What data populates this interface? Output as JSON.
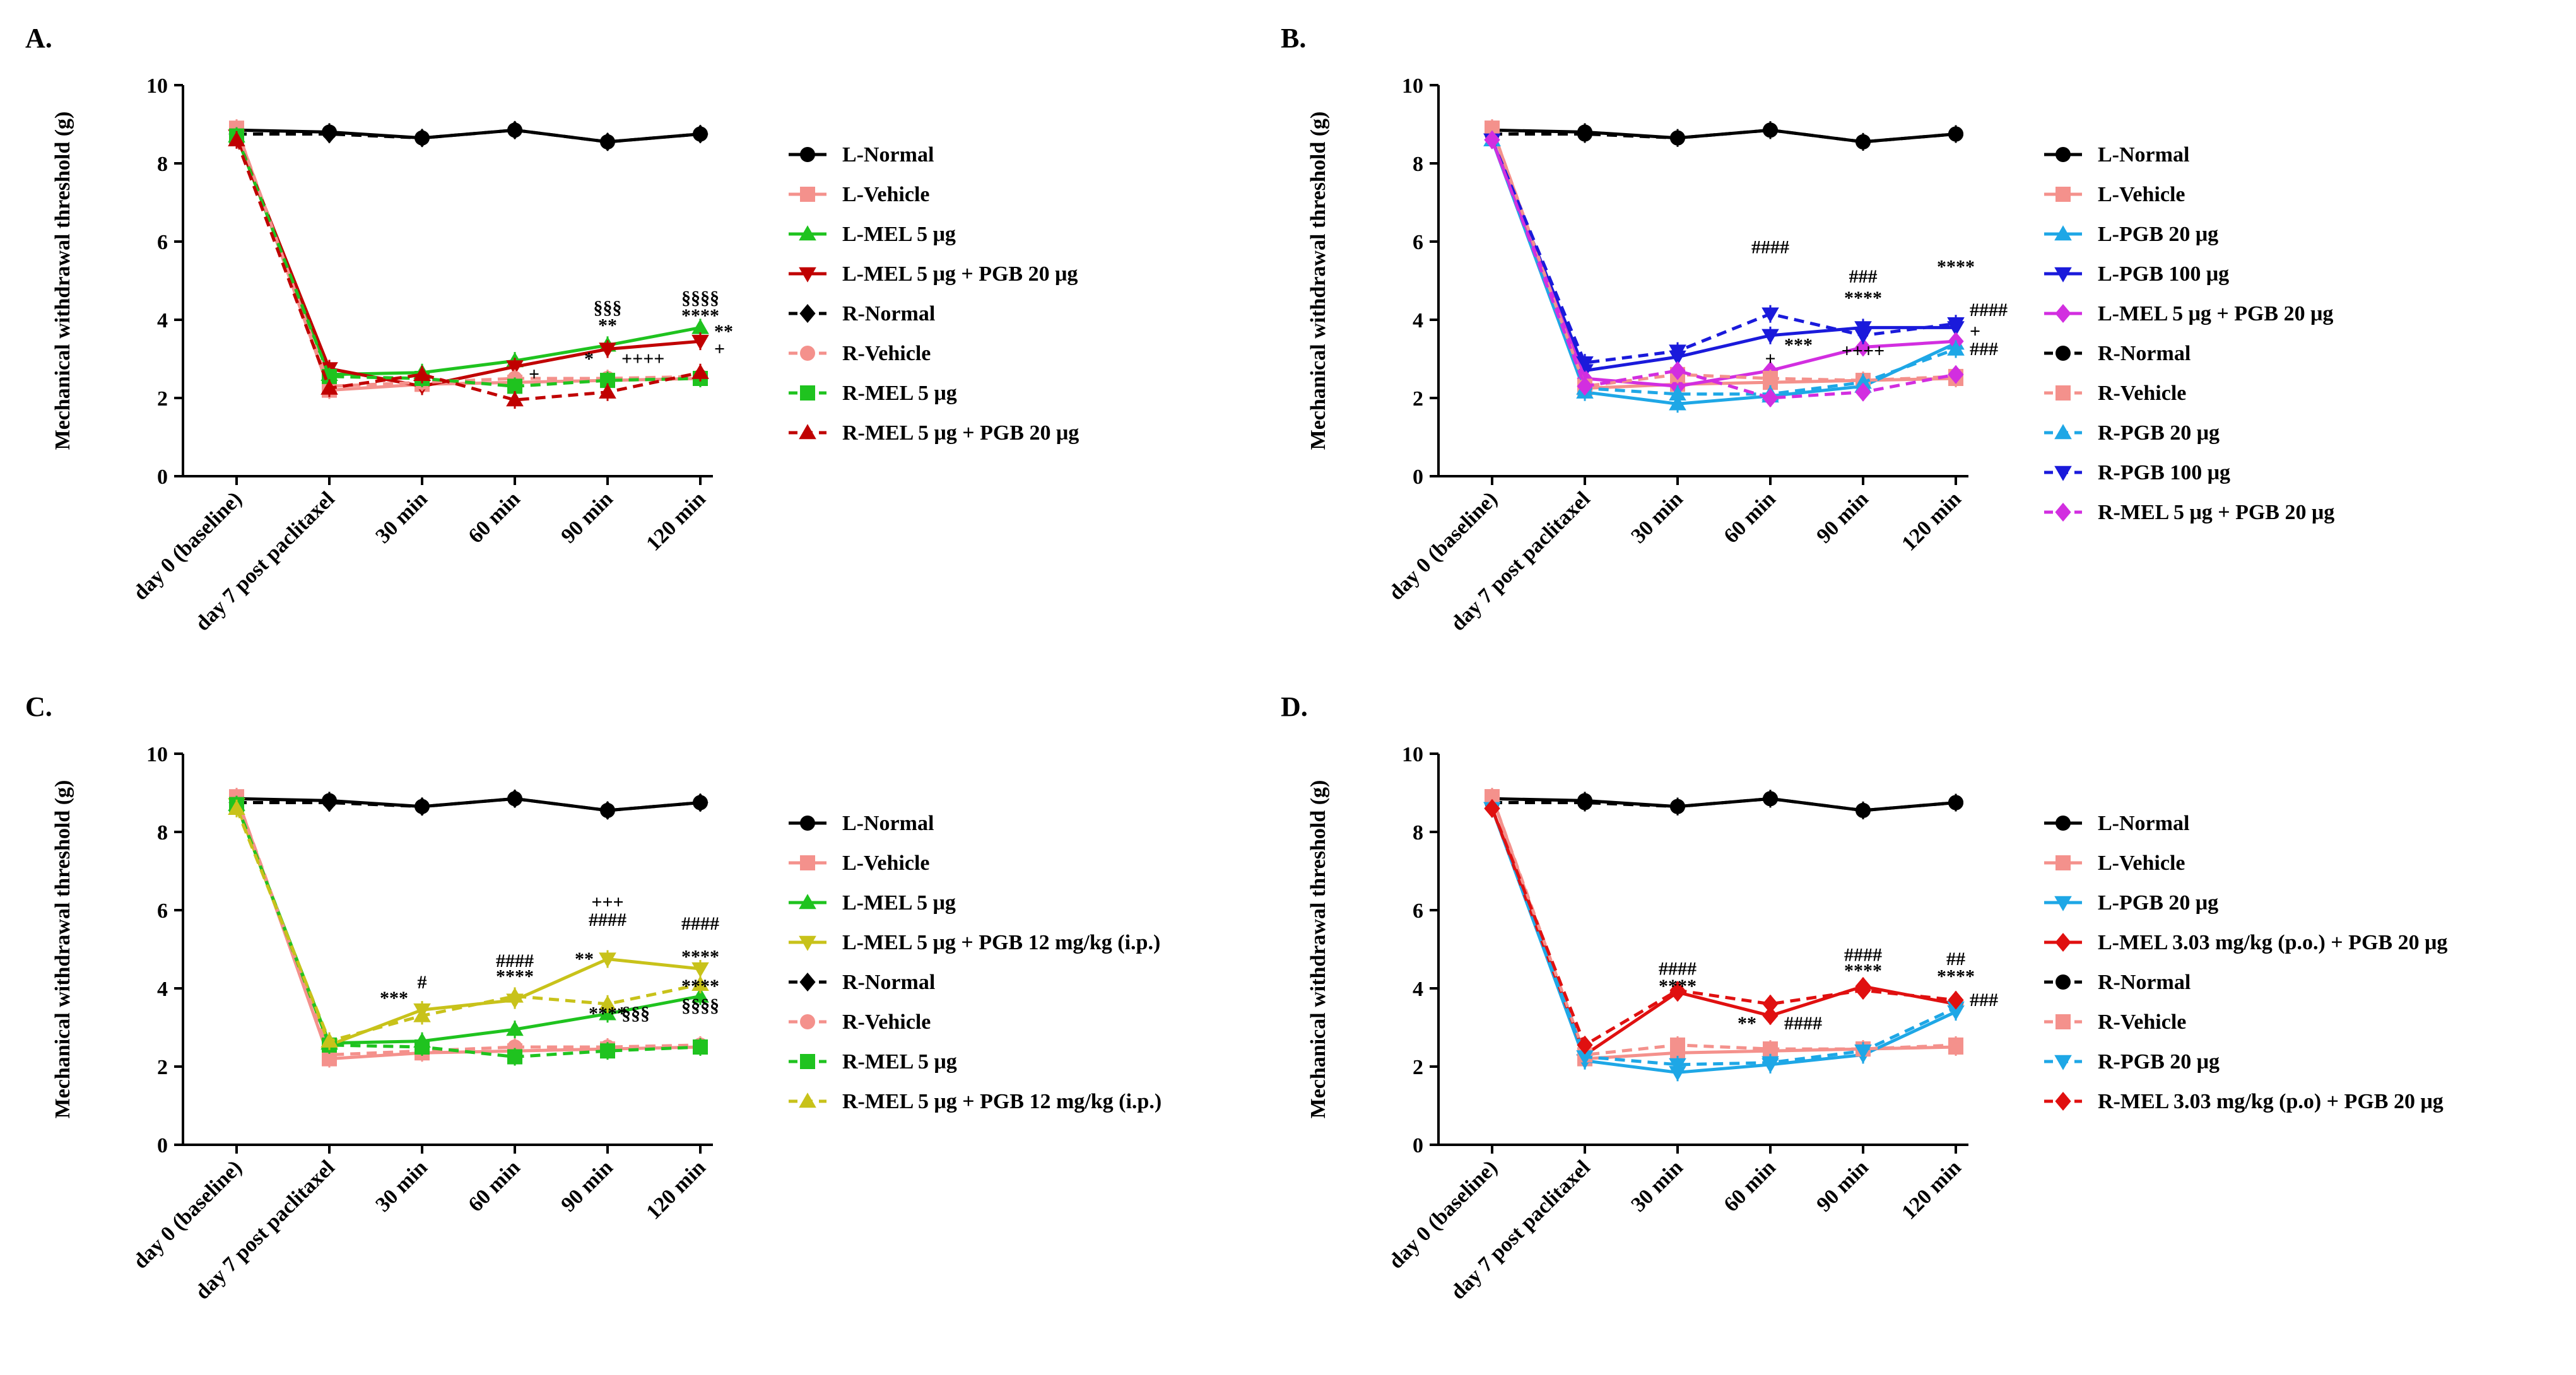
{
  "figure": {
    "ylabel": "Mechanical withdrawal threshold (g)",
    "categories": [
      "day 0 (baseline)",
      "day 7 post paclitaxel",
      "30 min",
      "60 min",
      "90 min",
      "120 min"
    ],
    "yticks": [
      "0",
      "2",
      "4",
      "6",
      "8",
      "10"
    ]
  },
  "chart_data": [
    {
      "panel": "A.",
      "type": "line",
      "title": "A.",
      "xlabel": "",
      "ylabel": "Mechanical withdrawal threshold (g)",
      "ylim": [
        0,
        10
      ],
      "categories": [
        "day 0 (baseline)",
        "day 7 post paclitaxel",
        "30 min",
        "60 min",
        "90 min",
        "120 min"
      ],
      "series": [
        {
          "name": "L-Normal",
          "color": "#000000",
          "marker": "circle",
          "dashed": false,
          "values": [
            8.85,
            8.8,
            8.65,
            8.85,
            8.55,
            8.75
          ]
        },
        {
          "name": "L-Vehicle",
          "color": "#f4918c",
          "marker": "square",
          "dashed": false,
          "values": [
            8.9,
            2.2,
            2.35,
            2.4,
            2.45,
            2.5
          ]
        },
        {
          "name": "L-MEL 5 μg",
          "color": "#1fc31f",
          "marker": "triangle-up",
          "dashed": false,
          "values": [
            8.7,
            2.6,
            2.65,
            2.95,
            3.35,
            3.8
          ]
        },
        {
          "name": "L-MEL 5 μg + PGB 20 μg",
          "color": "#c00000",
          "marker": "triangle-down",
          "dashed": false,
          "values": [
            8.7,
            2.75,
            2.3,
            2.8,
            3.25,
            3.45
          ]
        },
        {
          "name": "R-Normal",
          "color": "#000000",
          "marker": "diamond",
          "dashed": true,
          "values": [
            8.75,
            8.75,
            8.65,
            8.85,
            8.55,
            8.75
          ]
        },
        {
          "name": "R-Vehicle",
          "color": "#f4918c",
          "marker": "circle",
          "dashed": true,
          "values": [
            8.9,
            2.3,
            2.4,
            2.5,
            2.5,
            2.55
          ]
        },
        {
          "name": "R-MEL 5 μg",
          "color": "#1fc31f",
          "marker": "square",
          "dashed": true,
          "values": [
            8.7,
            2.55,
            2.5,
            2.3,
            2.45,
            2.5
          ]
        },
        {
          "name": "R-MEL 5 μg + PGB 20 μg",
          "color": "#c00000",
          "marker": "triangle-up",
          "dashed": true,
          "values": [
            8.6,
            2.25,
            2.6,
            1.95,
            2.15,
            2.65
          ]
        }
      ],
      "annotations": [
        {
          "text": "§§§",
          "x": "90 min",
          "y": 4.15
        },
        {
          "text": "**",
          "x": "90 min",
          "y": 3.7
        },
        {
          "text": "§§§§",
          "x": "120 min",
          "y": 4.4
        },
        {
          "text": "****",
          "x": "120 min",
          "y": 3.95
        },
        {
          "text": "**",
          "x": "120 min",
          "y": 3.55,
          "side": "right"
        },
        {
          "text": "+",
          "x": "120 min",
          "y": 3.1,
          "side": "right"
        },
        {
          "text": "+",
          "x": "60 min",
          "y": 2.45,
          "side": "right"
        },
        {
          "text": "*",
          "x": "90 min",
          "y": 2.85,
          "side": "left"
        },
        {
          "text": "++++",
          "x": "90 min",
          "y": 2.85,
          "side": "right"
        }
      ]
    },
    {
      "panel": "B.",
      "type": "line",
      "title": "B.",
      "xlabel": "",
      "ylabel": "Mechanical withdrawal threshold (g)",
      "ylim": [
        0,
        10
      ],
      "categories": [
        "day 0 (baseline)",
        "day 7 post paclitaxel",
        "30 min",
        "60 min",
        "90 min",
        "120 min"
      ],
      "series": [
        {
          "name": "L-Normal",
          "color": "#000000",
          "marker": "circle",
          "dashed": false,
          "values": [
            8.85,
            8.8,
            8.65,
            8.85,
            8.55,
            8.75
          ]
        },
        {
          "name": "L-Vehicle",
          "color": "#f4918c",
          "marker": "square",
          "dashed": false,
          "values": [
            8.9,
            2.25,
            2.35,
            2.4,
            2.45,
            2.5
          ]
        },
        {
          "name": "L-PGB 20 μg",
          "color": "#1ea7e6",
          "marker": "triangle-up",
          "dashed": false,
          "values": [
            8.6,
            2.15,
            1.85,
            2.05,
            2.3,
            3.4
          ]
        },
        {
          "name": "L-PGB 100 μg",
          "color": "#1a1adb",
          "marker": "triangle-down",
          "dashed": false,
          "values": [
            8.6,
            2.7,
            3.05,
            3.6,
            3.8,
            3.8
          ]
        },
        {
          "name": "L-MEL 5 μg + PGB 20 μg",
          "color": "#d22ee0",
          "marker": "diamond",
          "dashed": false,
          "values": [
            8.6,
            2.5,
            2.3,
            2.7,
            3.3,
            3.45
          ]
        },
        {
          "name": "R-Normal",
          "color": "#000000",
          "marker": "circle",
          "dashed": true,
          "values": [
            8.75,
            8.75,
            8.65,
            8.85,
            8.55,
            8.75
          ]
        },
        {
          "name": "R-Vehicle",
          "color": "#f4918c",
          "marker": "square",
          "dashed": true,
          "values": [
            8.9,
            2.3,
            2.6,
            2.5,
            2.45,
            2.55
          ]
        },
        {
          "name": "R-PGB 20 μg",
          "color": "#1ea7e6",
          "marker": "triangle-up",
          "dashed": true,
          "values": [
            8.6,
            2.25,
            2.1,
            2.1,
            2.4,
            3.25
          ]
        },
        {
          "name": "R-PGB 100 μg",
          "color": "#1a1adb",
          "marker": "triangle-down",
          "dashed": true,
          "values": [
            8.6,
            2.9,
            3.2,
            4.15,
            3.6,
            3.9
          ]
        },
        {
          "name": "R-MEL 5 μg + PGB 20 μg",
          "color": "#d22ee0",
          "marker": "diamond",
          "dashed": true,
          "values": [
            8.6,
            2.3,
            2.7,
            2.0,
            2.15,
            2.6
          ]
        }
      ],
      "annotations": [
        {
          "text": "####",
          "x": "60 min",
          "y": 5.7
        },
        {
          "text": "###",
          "x": "90 min",
          "y": 4.95
        },
        {
          "text": "****",
          "x": "90 min",
          "y": 4.4
        },
        {
          "text": "***",
          "x": "60 min",
          "y": 3.2,
          "side": "right"
        },
        {
          "text": "+",
          "x": "60 min",
          "y": 2.85
        },
        {
          "text": "++++",
          "x": "90 min",
          "y": 3.05
        },
        {
          "text": "****",
          "x": "120 min",
          "y": 5.2
        },
        {
          "text": "####",
          "x": "120 min",
          "y": 4.1,
          "side": "right"
        },
        {
          "text": "+",
          "x": "120 min",
          "y": 3.55,
          "side": "right"
        },
        {
          "text": "###",
          "x": "120 min",
          "y": 3.1,
          "side": "right"
        }
      ]
    },
    {
      "panel": "C.",
      "type": "line",
      "title": "C.",
      "xlabel": "",
      "ylabel": "Mechanical withdrawal threshold (g)",
      "ylim": [
        0,
        10
      ],
      "categories": [
        "day 0 (baseline)",
        "day 7 post paclitaxel",
        "30 min",
        "60 min",
        "90 min",
        "120 min"
      ],
      "series": [
        {
          "name": "L-Normal",
          "color": "#000000",
          "marker": "circle",
          "dashed": false,
          "values": [
            8.85,
            8.8,
            8.65,
            8.85,
            8.55,
            8.75
          ]
        },
        {
          "name": "L-Vehicle",
          "color": "#f4918c",
          "marker": "square",
          "dashed": false,
          "values": [
            8.9,
            2.2,
            2.35,
            2.4,
            2.45,
            2.5
          ]
        },
        {
          "name": "L-MEL 5 μg",
          "color": "#1fc31f",
          "marker": "triangle-up",
          "dashed": false,
          "values": [
            8.7,
            2.6,
            2.65,
            2.95,
            3.35,
            3.8
          ]
        },
        {
          "name": "L-MEL 5 μg + PGB 12 mg/kg (i.p.)",
          "color": "#c8c21a",
          "marker": "triangle-down",
          "dashed": false,
          "values": [
            8.7,
            2.55,
            3.45,
            3.7,
            4.75,
            4.5
          ]
        },
        {
          "name": "R-Normal",
          "color": "#000000",
          "marker": "diamond",
          "dashed": true,
          "values": [
            8.75,
            8.75,
            8.65,
            8.85,
            8.55,
            8.75
          ]
        },
        {
          "name": "R-Vehicle",
          "color": "#f4918c",
          "marker": "circle",
          "dashed": true,
          "values": [
            8.9,
            2.3,
            2.4,
            2.5,
            2.5,
            2.55
          ]
        },
        {
          "name": "R-MEL 5 μg",
          "color": "#1fc31f",
          "marker": "square",
          "dashed": true,
          "values": [
            8.7,
            2.55,
            2.5,
            2.25,
            2.4,
            2.5
          ]
        },
        {
          "name": "R-MEL 5 μg + PGB 12 mg/kg (i.p.)",
          "color": "#c8c21a",
          "marker": "triangle-up",
          "dashed": true,
          "values": [
            8.6,
            2.65,
            3.3,
            3.8,
            3.6,
            4.1
          ]
        }
      ],
      "annotations": [
        {
          "text": "#",
          "x": "30 min",
          "y": 4.0
        },
        {
          "text": "***",
          "x": "30 min",
          "y": 3.6,
          "side": "left"
        },
        {
          "text": "####",
          "x": "60 min",
          "y": 4.55
        },
        {
          "text": "****",
          "x": "60 min",
          "y": 4.15
        },
        {
          "text": "+++",
          "x": "90 min",
          "y": 6.05
        },
        {
          "text": "####",
          "x": "90 min",
          "y": 5.6
        },
        {
          "text": "**",
          "x": "90 min",
          "y": 4.6,
          "side": "left"
        },
        {
          "text": "****",
          "x": "90 min",
          "y": 3.2
        },
        {
          "text": "§§§",
          "x": "90 min",
          "y": 3.2,
          "side": "right"
        },
        {
          "text": "####",
          "x": "120 min",
          "y": 5.5
        },
        {
          "text": "****",
          "x": "120 min",
          "y": 4.65
        },
        {
          "text": "****",
          "x": "120 min",
          "y": 3.9
        },
        {
          "text": "§§§§",
          "x": "120 min",
          "y": 3.4
        }
      ]
    },
    {
      "panel": "D.",
      "type": "line",
      "title": "D.",
      "xlabel": "",
      "ylabel": "Mechanical withdrawal threshold (g)",
      "ylim": [
        0,
        10
      ],
      "categories": [
        "day 0 (baseline)",
        "day 7 post paclitaxel",
        "30 min",
        "60 min",
        "90 min",
        "120 min"
      ],
      "series": [
        {
          "name": "L-Normal",
          "color": "#000000",
          "marker": "circle",
          "dashed": false,
          "values": [
            8.85,
            8.8,
            8.65,
            8.85,
            8.55,
            8.75
          ]
        },
        {
          "name": "L-Vehicle",
          "color": "#f4918c",
          "marker": "square",
          "dashed": false,
          "values": [
            8.9,
            2.2,
            2.35,
            2.4,
            2.45,
            2.5
          ]
        },
        {
          "name": "L-PGB 20 μg",
          "color": "#1ea7e6",
          "marker": "triangle-down",
          "dashed": false,
          "values": [
            8.6,
            2.15,
            1.85,
            2.05,
            2.3,
            3.4
          ]
        },
        {
          "name": "L-MEL 3.03 mg/kg (p.o.) + PGB 20 μg",
          "color": "#e01010",
          "marker": "diamond",
          "dashed": false,
          "values": [
            8.6,
            2.3,
            3.9,
            3.3,
            4.05,
            3.6
          ]
        },
        {
          "name": "R-Normal",
          "color": "#000000",
          "marker": "circle",
          "dashed": true,
          "values": [
            8.75,
            8.75,
            8.65,
            8.85,
            8.55,
            8.75
          ]
        },
        {
          "name": "R-Vehicle",
          "color": "#f4918c",
          "marker": "square",
          "dashed": true,
          "values": [
            8.9,
            2.3,
            2.55,
            2.45,
            2.45,
            2.55
          ]
        },
        {
          "name": "R-PGB 20 μg",
          "color": "#1ea7e6",
          "marker": "triangle-down",
          "dashed": true,
          "values": [
            8.6,
            2.25,
            2.05,
            2.1,
            2.4,
            3.5
          ]
        },
        {
          "name": "R-MEL 3.03 mg/kg (p.o) + PGB 20 μg",
          "color": "#e01010",
          "marker": "diamond",
          "dashed": true,
          "values": [
            8.6,
            2.55,
            3.95,
            3.6,
            3.95,
            3.7
          ]
        }
      ],
      "annotations": [
        {
          "text": "####",
          "x": "30 min",
          "y": 4.35
        },
        {
          "text": "****",
          "x": "30 min",
          "y": 3.9
        },
        {
          "text": "**",
          "x": "60 min",
          "y": 2.95,
          "side": "left"
        },
        {
          "text": "####",
          "x": "60 min",
          "y": 2.95,
          "side": "right"
        },
        {
          "text": "####",
          "x": "90 min",
          "y": 4.7
        },
        {
          "text": "****",
          "x": "90 min",
          "y": 4.3
        },
        {
          "text": "##",
          "x": "120 min",
          "y": 4.6
        },
        {
          "text": "****",
          "x": "120 min",
          "y": 4.15
        },
        {
          "text": "###",
          "x": "120 min",
          "y": 3.55,
          "side": "right"
        }
      ]
    }
  ]
}
